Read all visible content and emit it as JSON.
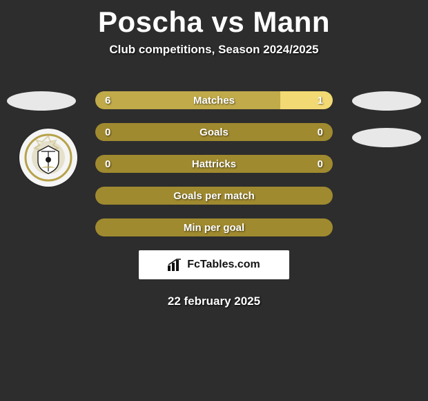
{
  "title": "Poscha vs Mann",
  "subtitle": "Club competitions, Season 2024/2025",
  "date": "22 february 2025",
  "colors": {
    "olive": "#a08a2f",
    "olive_light": "#c0aa4a",
    "right_fill": "#f2d974",
    "bg": "#2d2d2d",
    "text": "#ffffff"
  },
  "rows": [
    {
      "label": "Matches",
      "left": "6",
      "right": "1",
      "left_pct": 78,
      "right_pct": 22
    },
    {
      "label": "Goals",
      "left": "0",
      "right": "0",
      "left_pct": 0,
      "right_pct": 0
    },
    {
      "label": "Hattricks",
      "left": "0",
      "right": "0",
      "left_pct": 0,
      "right_pct": 0
    },
    {
      "label": "Goals per match",
      "left": "",
      "right": "",
      "left_pct": 0,
      "right_pct": 0
    },
    {
      "label": "Min per goal",
      "left": "",
      "right": "",
      "left_pct": 0,
      "right_pct": 0
    }
  ],
  "brand": "FcTables.com"
}
